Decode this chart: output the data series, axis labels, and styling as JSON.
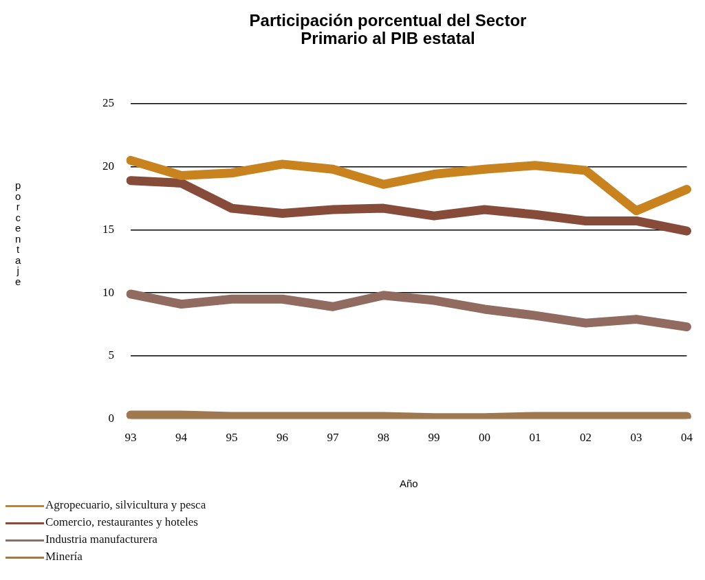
{
  "chart_data": {
    "type": "line",
    "title": "Participación porcentual del Sector\nPrimario al PIB estatal",
    "xlabel": "Año",
    "ylabel": "porcentaje",
    "categories": [
      "93",
      "94",
      "95",
      "96",
      "97",
      "98",
      "99",
      "00",
      "01",
      "02",
      "03",
      "04"
    ],
    "series": [
      {
        "name": "Agropecuario, silvicultura y pesca",
        "color": "#c8821e",
        "values": [
          20.5,
          19.3,
          19.5,
          20.2,
          19.8,
          18.6,
          19.4,
          19.8,
          20.1,
          19.7,
          16.5,
          18.2
        ]
      },
      {
        "name": "Comercio, restaurantes y hoteles",
        "color": "#874b3a",
        "values": [
          18.9,
          18.7,
          16.7,
          16.3,
          16.6,
          16.7,
          16.1,
          16.6,
          16.2,
          15.7,
          15.7,
          14.9
        ]
      },
      {
        "name": "Industria manufacturera",
        "color": "#916a60",
        "values": [
          9.9,
          9.1,
          9.5,
          9.5,
          8.9,
          9.8,
          9.4,
          8.7,
          8.2,
          7.6,
          7.9,
          7.3
        ]
      },
      {
        "name": "Minería",
        "color": "#a07850",
        "values": [
          0.3,
          0.3,
          0.2,
          0.2,
          0.2,
          0.2,
          0.1,
          0.1,
          0.2,
          0.2,
          0.2,
          0.2
        ]
      }
    ],
    "ylim": [
      0,
      25
    ],
    "yticks": [
      0,
      5,
      10,
      15,
      20,
      25
    ],
    "grid": "y",
    "legend": "bottom left",
    "marker": "none",
    "line_style": "solid"
  }
}
